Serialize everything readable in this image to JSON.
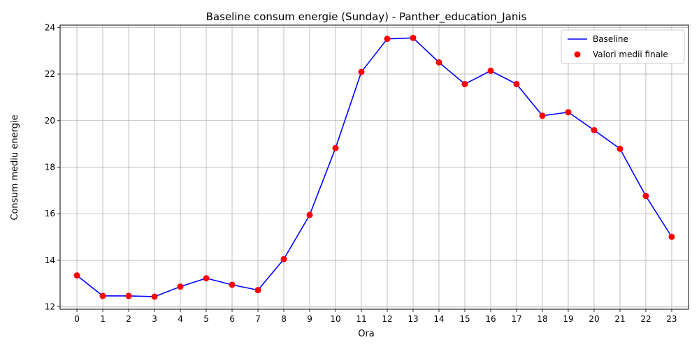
{
  "chart_data": {
    "type": "line",
    "title": "Baseline consum energie (Sunday) - Panther_education_Janis",
    "xlabel": "Ora",
    "ylabel": "Consum mediu energie",
    "x": [
      0,
      1,
      2,
      3,
      4,
      5,
      6,
      7,
      8,
      9,
      10,
      11,
      12,
      13,
      14,
      15,
      16,
      17,
      18,
      19,
      20,
      21,
      22,
      23
    ],
    "xticks": [
      "0",
      "1",
      "2",
      "3",
      "4",
      "5",
      "6",
      "7",
      "8",
      "9",
      "10",
      "11",
      "12",
      "13",
      "14",
      "15",
      "16",
      "17",
      "18",
      "19",
      "20",
      "21",
      "22",
      "23"
    ],
    "yticks": [
      "12",
      "14",
      "16",
      "18",
      "20",
      "22",
      "24"
    ],
    "ylim": [
      11.9,
      24.1
    ],
    "xlim": [
      -0.65,
      23.65
    ],
    "grid": true,
    "legend_position": "top-right",
    "series": [
      {
        "name": "Baseline",
        "kind": "line",
        "color": "#0000ff",
        "values": [
          13.35,
          12.47,
          12.47,
          12.44,
          12.87,
          13.23,
          12.95,
          12.72,
          14.05,
          15.95,
          18.82,
          22.09,
          23.51,
          23.55,
          22.5,
          21.57,
          22.14,
          21.57,
          20.21,
          20.36,
          19.59,
          18.79,
          16.76,
          15.01
        ]
      },
      {
        "name": "Valori medii finale",
        "kind": "scatter",
        "color": "#ff0000",
        "values": [
          13.35,
          12.47,
          12.47,
          12.44,
          12.87,
          13.23,
          12.95,
          12.72,
          14.05,
          15.95,
          18.82,
          22.09,
          23.51,
          23.55,
          22.5,
          21.57,
          22.14,
          21.57,
          20.21,
          20.36,
          19.59,
          18.79,
          16.76,
          15.01
        ]
      }
    ]
  }
}
